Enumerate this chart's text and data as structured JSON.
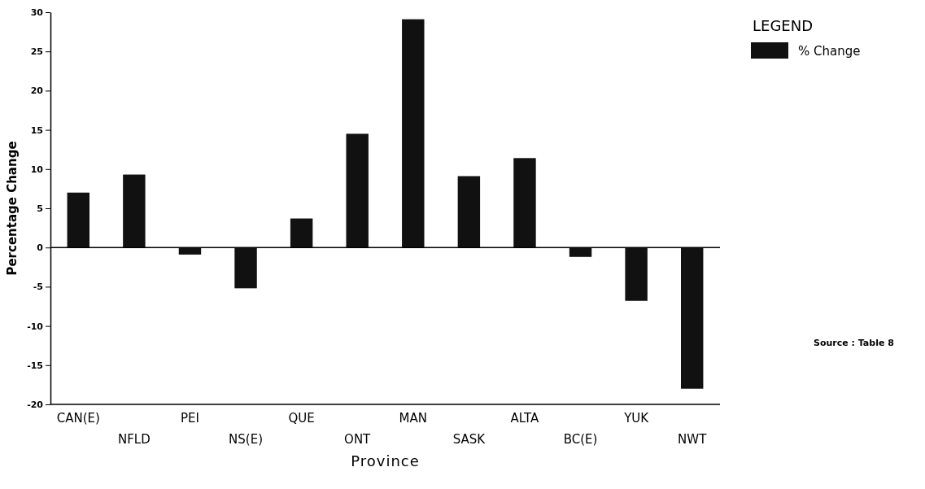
{
  "chart_data": {
    "type": "bar",
    "xlabel": "Province",
    "ylabel": "Percentage Change",
    "legend_title": "LEGEND",
    "legend": "top right",
    "categories": [
      "CAN(E)",
      "NFLD",
      "PEI",
      "NS(E)",
      "QUE",
      "ONT",
      "MAN",
      "SASK",
      "ALTA",
      "BC(E)",
      "YUK",
      "NWT"
    ],
    "series": [
      {
        "name": "% Change",
        "color": "#111111",
        "values": [
          7.0,
          9.3,
          -0.9,
          -5.2,
          3.7,
          14.5,
          29.1,
          9.1,
          11.4,
          -1.2,
          -6.8,
          -18.0
        ]
      }
    ],
    "ylim": [
      -20,
      30
    ],
    "yticks": [
      -20,
      -15,
      -10,
      -5,
      0,
      5,
      10,
      15,
      20,
      25,
      30
    ],
    "annotations": [
      "Source : Table 8"
    ]
  }
}
